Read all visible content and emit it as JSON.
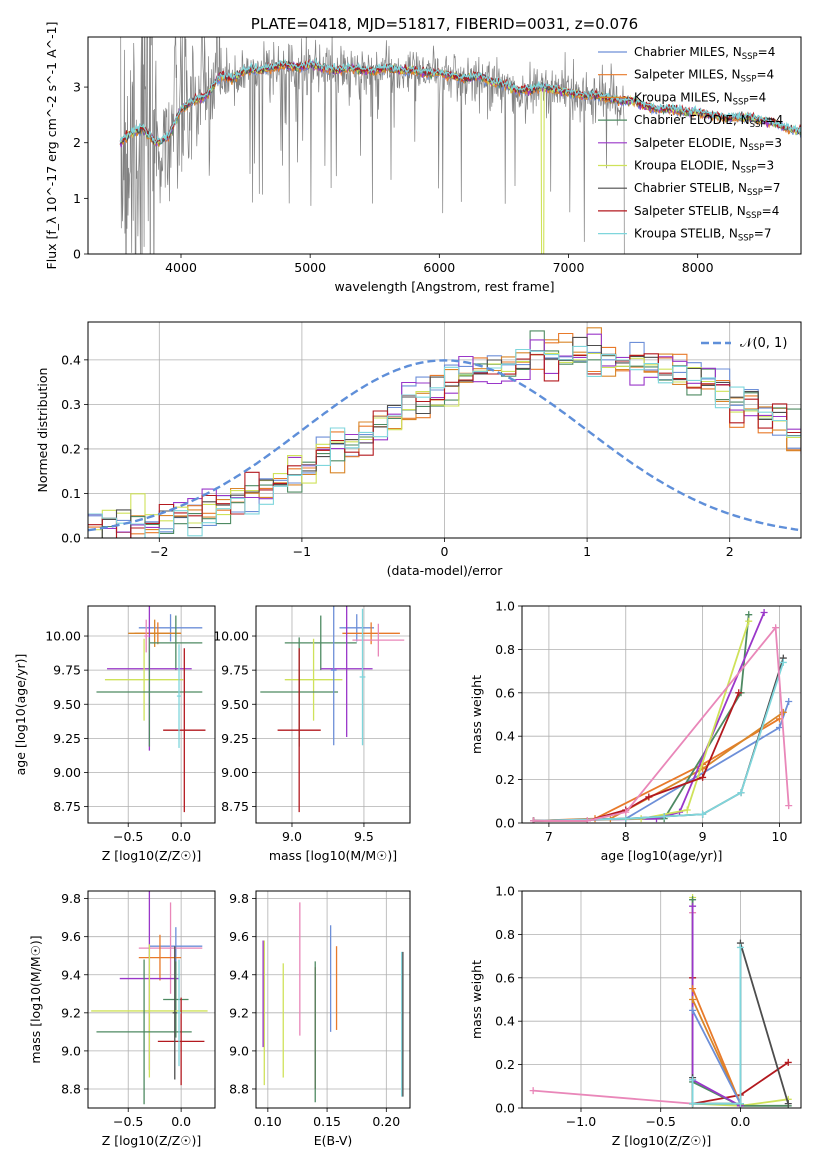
{
  "colors": {
    "chabrier_miles": "#6d8fd8",
    "salpeter_miles": "#e87a2a",
    "kroupa_miles": "#d9862a",
    "chabrier_elodie": "#4e8a62",
    "salpeter_elodie": "#9a37c9",
    "kroupa_elodie": "#cfe25a",
    "chabrier_stelib": "#4d4d4d",
    "salpeter_stelib": "#b3191f",
    "kroupa_stelib": "#7fd6dc",
    "pink": "#e987b9",
    "data_grey": "#808080",
    "normal": "#5f8fd9"
  },
  "chart_data": [
    {
      "id": "spectrum",
      "type": "line",
      "title": "PLATE=0418, MJD=51817, FIBERID=0031, z=0.076",
      "xlabel": "wavelength [Angstrom, rest frame]",
      "ylabel": "Flux [f_λ 10^-17 erg cm^-2 s^-1 A^-1]",
      "xlim": [
        3280,
        8800
      ],
      "ylim": [
        0,
        3.9
      ],
      "xticks": [
        "4000",
        "5000",
        "6000",
        "7000",
        "8000"
      ],
      "yticks": [
        "0",
        "1",
        "2",
        "3"
      ],
      "grid": false,
      "legend_position": "right",
      "legend": [
        {
          "label": "Chabrier MILES, N",
          "sub": "SSP",
          "suffix": "=4",
          "color_key": "chabrier_miles"
        },
        {
          "label": "Salpeter MILES, N",
          "sub": "SSP",
          "suffix": "=4",
          "color_key": "salpeter_miles"
        },
        {
          "label": "Kroupa MILES, N",
          "sub": "SSP",
          "suffix": "=4",
          "color_key": "kroupa_miles"
        },
        {
          "label": "Chabrier ELODIE, N",
          "sub": "SSP",
          "suffix": "=4",
          "color_key": "chabrier_elodie"
        },
        {
          "label": "Salpeter ELODIE, N",
          "sub": "SSP",
          "suffix": "=3",
          "color_key": "salpeter_elodie"
        },
        {
          "label": "Kroupa ELODIE, N",
          "sub": "SSP",
          "suffix": "=3",
          "color_key": "kroupa_elodie"
        },
        {
          "label": "Chabrier STELIB, N",
          "sub": "SSP",
          "suffix": "=7",
          "color_key": "chabrier_stelib"
        },
        {
          "label": "Salpeter STELIB, N",
          "sub": "SSP",
          "suffix": "=4",
          "color_key": "salpeter_stelib"
        },
        {
          "label": "Kroupa STELIB, N",
          "sub": "SSP",
          "suffix": "=7",
          "color_key": "kroupa_stelib"
        }
      ],
      "model_envelope": {
        "x": [
          3530,
          3600,
          3700,
          3800,
          3900,
          4000,
          4100,
          4200,
          4300,
          4400,
          4500,
          4600,
          4700,
          4800,
          4900,
          5000,
          5100,
          5200,
          5300,
          5400,
          5500,
          5600,
          5700,
          5800,
          5900,
          6000,
          6100,
          6200,
          6300,
          6400,
          6500,
          6600,
          6700,
          6800,
          6900,
          7000,
          7100,
          7200,
          7300,
          7400,
          7500,
          7600,
          7700,
          7800,
          7900,
          8000,
          8100,
          8200,
          8300,
          8400,
          8500,
          8600,
          8700,
          8800
        ],
        "y": [
          2.0,
          2.15,
          2.25,
          2.0,
          2.1,
          2.6,
          2.75,
          2.85,
          3.2,
          3.15,
          3.3,
          3.3,
          3.35,
          3.4,
          3.35,
          3.4,
          3.35,
          3.3,
          3.35,
          3.3,
          3.3,
          3.35,
          3.3,
          3.3,
          3.25,
          3.25,
          3.2,
          3.15,
          3.2,
          3.1,
          3.05,
          2.95,
          2.95,
          3.0,
          2.95,
          2.9,
          2.85,
          2.85,
          2.8,
          2.75,
          2.75,
          2.65,
          2.6,
          2.6,
          2.55,
          2.55,
          2.5,
          2.45,
          2.45,
          2.45,
          2.4,
          2.35,
          2.25,
          2.2
        ]
      },
      "data_notes": "grey observed spectrum, noisy below ~4300 A, valid flux ends near 7430 A"
    },
    {
      "id": "residuals",
      "type": "line",
      "xlabel": "(data-model)/error",
      "ylabel": "Normed distribution",
      "xlim": [
        -2.5,
        2.5
      ],
      "ylim": [
        0,
        0.485
      ],
      "xticks": [
        "−2",
        "−1",
        "0",
        "1",
        "2"
      ],
      "yticks": [
        "0.0",
        "0.1",
        "0.2",
        "0.3",
        "0.4"
      ],
      "grid": true,
      "legend_position": "top-right",
      "legend_label": "𝒩(0, 1)",
      "bin_width": 0.1,
      "bins_start": -2.5,
      "histogram": [
        0.022,
        0.024,
        0.028,
        0.032,
        0.036,
        0.045,
        0.052,
        0.058,
        0.064,
        0.072,
        0.082,
        0.095,
        0.11,
        0.125,
        0.145,
        0.165,
        0.185,
        0.2,
        0.215,
        0.235,
        0.26,
        0.28,
        0.3,
        0.315,
        0.33,
        0.345,
        0.36,
        0.375,
        0.385,
        0.395,
        0.4,
        0.405,
        0.41,
        0.41,
        0.41,
        0.405,
        0.405,
        0.4,
        0.395,
        0.39,
        0.385,
        0.375,
        0.36,
        0.345,
        0.33,
        0.31,
        0.29,
        0.275,
        0.255,
        0.235,
        0.215,
        0.19,
        0.17,
        0.15,
        0.13,
        0.11,
        0.095,
        0.082,
        0.07,
        0.06,
        0.052,
        0.046,
        0.04,
        0.035,
        0.03,
        0.026,
        0.023,
        0.021,
        0.02,
        0.02
      ],
      "normal_curve": {
        "mean": 0,
        "sigma": 1
      }
    },
    {
      "id": "age-vs-Z",
      "type": "scatter",
      "xlabel": "Z [log10(Z/Z☉)]",
      "ylabel": "age  [log10(age/yr)]",
      "xlim": [
        -0.88,
        0.32
      ],
      "ylim": [
        8.63,
        10.22
      ],
      "xticks": [
        "−0.5",
        "0.0"
      ],
      "yticks": [
        "8.75",
        "9.00",
        "9.25",
        "9.50",
        "9.75",
        "10.00"
      ],
      "grid": true,
      "points": [
        {
          "color_key": "chabrier_miles",
          "x": -0.1,
          "xerr": 0.3,
          "y": 10.06,
          "yerr": 0.1
        },
        {
          "color_key": "salpeter_miles",
          "x": -0.22,
          "xerr": 0.22,
          "y": 10.02,
          "yerr": 0.08
        },
        {
          "color_key": "kroupa_miles",
          "x": -0.25,
          "xerr": 0.25,
          "y": 10.02,
          "yerr": 0.1
        },
        {
          "color_key": "chabrier_elodie",
          "x": -0.05,
          "xerr": 0.25,
          "y": 9.95,
          "yerr": 0.2
        },
        {
          "color_key": "salpeter_elodie",
          "x": -0.3,
          "xerr": 0.4,
          "y": 9.76,
          "yerr": 0.6
        },
        {
          "color_key": "kroupa_elodie",
          "x": -0.35,
          "xerr": 0.37,
          "y": 9.68,
          "yerr": 0.3
        },
        {
          "color_key": "chabrier_elodie",
          "x": -0.3,
          "xerr": 0.5,
          "y": 9.59,
          "yerr": 0.4
        },
        {
          "color_key": "salpeter_stelib",
          "x": 0.03,
          "xerr": 0.2,
          "y": 9.31,
          "yerr": 0.6
        },
        {
          "color_key": "pink",
          "x": -0.33,
          "xerr": 0.02,
          "y": 10.0,
          "yerr": 0.12
        },
        {
          "color_key": "kroupa_stelib",
          "x": -0.02,
          "xerr": 0.02,
          "y": 9.56,
          "yerr": 0.38
        }
      ]
    },
    {
      "id": "age-vs-mass",
      "type": "scatter",
      "xlabel": "mass [log10(M/M☉)]",
      "ylabel": "",
      "xlim": [
        8.75,
        9.82
      ],
      "ylim": [
        8.63,
        10.22
      ],
      "xticks": [
        "9.0",
        "9.5"
      ],
      "yticks": [
        "8.75",
        "9.00",
        "9.25",
        "9.50",
        "9.75",
        "10.00"
      ],
      "grid": true,
      "points": [
        {
          "color_key": "chabrier_miles",
          "x": 9.45,
          "xerr": 0.12,
          "y": 10.06,
          "yerr": 0.1
        },
        {
          "color_key": "salpeter_miles",
          "x": 9.55,
          "xerr": 0.2,
          "y": 10.02,
          "yerr": 0.08
        },
        {
          "color_key": "pink",
          "x": 9.6,
          "xerr": 0.18,
          "y": 9.97,
          "yerr": 0.12
        },
        {
          "color_key": "chabrier_elodie",
          "x": 9.2,
          "xerr": 0.25,
          "y": 9.95,
          "yerr": 0.2
        },
        {
          "color_key": "salpeter_elodie",
          "x": 9.38,
          "xerr": 0.18,
          "y": 9.76,
          "yerr": 0.5
        },
        {
          "color_key": "kroupa_elodie",
          "x": 9.15,
          "xerr": 0.2,
          "y": 9.68,
          "yerr": 0.3
        },
        {
          "color_key": "chabrier_elodie",
          "x": 9.05,
          "xerr": 0.27,
          "y": 9.59,
          "yerr": 0.4
        },
        {
          "color_key": "salpeter_stelib",
          "x": 9.05,
          "xerr": 0.15,
          "y": 9.31,
          "yerr": 0.6
        },
        {
          "color_key": "chabrier_miles",
          "x": 9.29,
          "xerr": 0.02,
          "y": 9.75,
          "yerr": 0.55
        },
        {
          "color_key": "kroupa_stelib",
          "x": 9.49,
          "xerr": 0.02,
          "y": 9.7,
          "yerr": 0.5
        }
      ]
    },
    {
      "id": "weight-vs-age",
      "type": "line",
      "xlabel": "age  [log10(age/yr)]",
      "ylabel": "mass weight",
      "xlim": [
        6.65,
        10.28
      ],
      "ylim": [
        0,
        1
      ],
      "xticks": [
        "7",
        "8",
        "9",
        "10"
      ],
      "yticks": [
        "0.0",
        "0.2",
        "0.4",
        "0.6",
        "0.8",
        "1.0"
      ],
      "grid": true,
      "series": [
        {
          "color_key": "chabrier_miles",
          "x": [
            6.8,
            8.0,
            10.0,
            10.12
          ],
          "y": [
            0.01,
            0.02,
            0.44,
            0.56
          ]
        },
        {
          "color_key": "salpeter_miles",
          "x": [
            6.8,
            7.6,
            9.0,
            10.0
          ],
          "y": [
            0.01,
            0.02,
            0.27,
            0.48
          ]
        },
        {
          "color_key": "kroupa_miles",
          "x": [
            6.8,
            7.8,
            9.0,
            10.05
          ],
          "y": [
            0.01,
            0.02,
            0.25,
            0.51
          ]
        },
        {
          "color_key": "chabrier_elodie",
          "x": [
            6.8,
            8.0,
            8.5,
            9.5,
            9.6
          ],
          "y": [
            0.01,
            0.02,
            0.02,
            0.6,
            0.96
          ]
        },
        {
          "color_key": "salpeter_elodie",
          "x": [
            6.8,
            8.4,
            8.7,
            9.8
          ],
          "y": [
            0.01,
            0.02,
            0.05,
            0.97
          ]
        },
        {
          "color_key": "kroupa_elodie",
          "x": [
            6.8,
            8.2,
            8.8,
            9.6
          ],
          "y": [
            0.01,
            0.02,
            0.06,
            0.93
          ]
        },
        {
          "color_key": "chabrier_stelib",
          "x": [
            6.8,
            8.0,
            8.5,
            9.0,
            9.5,
            10.05
          ],
          "y": [
            0.01,
            0.02,
            0.03,
            0.04,
            0.14,
            0.76
          ]
        },
        {
          "color_key": "salpeter_stelib",
          "x": [
            6.8,
            7.5,
            8.0,
            8.3,
            9.0,
            9.47
          ],
          "y": [
            0.01,
            0.01,
            0.06,
            0.12,
            0.21,
            0.6
          ]
        },
        {
          "color_key": "kroupa_stelib",
          "x": [
            6.8,
            8.0,
            8.5,
            9.0,
            9.5,
            10.05
          ],
          "y": [
            0.01,
            0.02,
            0.03,
            0.04,
            0.14,
            0.74
          ]
        },
        {
          "color_key": "pink",
          "x": [
            6.8,
            7.5,
            8.0,
            9.95,
            10.12
          ],
          "y": [
            0.01,
            0.01,
            0.05,
            0.9,
            0.08
          ]
        }
      ]
    },
    {
      "id": "mass-vs-Z",
      "type": "scatter",
      "xlabel": "Z [log10(Z/Z☉)]",
      "ylabel": "mass [log10(M/M☉)]",
      "xlim": [
        -0.88,
        0.32
      ],
      "ylim": [
        8.7,
        9.84
      ],
      "xticks": [
        "−0.5",
        "0.0"
      ],
      "yticks": [
        "8.8",
        "9.0",
        "9.2",
        "9.4",
        "9.6",
        "9.8"
      ],
      "grid": true,
      "points": [
        {
          "color_key": "chabrier_miles",
          "x": -0.05,
          "xerr": 0.25,
          "y": 9.55,
          "yerr": 0.1
        },
        {
          "color_key": "pink",
          "x": -0.1,
          "xerr": 0.3,
          "y": 9.54,
          "yerr": 0.24
        },
        {
          "color_key": "salpeter_miles",
          "x": -0.2,
          "xerr": 0.2,
          "y": 9.49,
          "yerr": 0.12
        },
        {
          "color_key": "salpeter_elodie",
          "x": -0.3,
          "xerr": 0.28,
          "y": 9.38,
          "yerr": 0.48
        },
        {
          "color_key": "chabrier_elodie",
          "x": -0.05,
          "xerr": 0.12,
          "y": 9.27,
          "yerr": 0.2
        },
        {
          "color_key": "kroupa_elodie",
          "x": -0.3,
          "xerr": 0.55,
          "y": 9.21,
          "yerr": 0.35
        },
        {
          "color_key": "chabrier_elodie",
          "x": -0.35,
          "xerr": 0.45,
          "y": 9.1,
          "yerr": 0.38
        },
        {
          "color_key": "salpeter_stelib",
          "x": 0.0,
          "xerr": 0.22,
          "y": 9.05,
          "yerr": 0.23
        },
        {
          "color_key": "kroupa_stelib",
          "x": -0.02,
          "xerr": 0.02,
          "y": 9.2,
          "yerr": 0.28
        },
        {
          "color_key": "chabrier_stelib",
          "x": -0.06,
          "xerr": 0.02,
          "y": 9.2,
          "yerr": 0.35
        }
      ]
    },
    {
      "id": "mass-vs-ebv",
      "type": "scatter",
      "xlabel": "E(B-V)",
      "ylabel": "",
      "xlim": [
        0.09,
        0.22
      ],
      "ylim": [
        8.7,
        9.84
      ],
      "xticks": [
        "0.10",
        "0.15",
        "0.20"
      ],
      "yticks": [
        "8.8",
        "9.0",
        "9.2",
        "9.4",
        "9.6",
        "9.8"
      ],
      "grid": true,
      "points": [
        {
          "color_key": "kroupa_elodie",
          "x": 0.097,
          "xerr": 0,
          "y": 9.2,
          "yerr": 0.38
        },
        {
          "color_key": "salpeter_elodie",
          "x": 0.096,
          "xerr": 0,
          "y": 9.3,
          "yerr": 0.28
        },
        {
          "color_key": "kroupa_elodie",
          "x": 0.113,
          "xerr": 0,
          "y": 9.16,
          "yerr": 0.3
        },
        {
          "color_key": "pink",
          "x": 0.127,
          "xerr": 0,
          "y": 9.43,
          "yerr": 0.35
        },
        {
          "color_key": "salpeter_stelib",
          "x": 0.14,
          "xerr": 0,
          "y": 9.12,
          "yerr": 0.32
        },
        {
          "color_key": "chabrier_elodie",
          "x": 0.14,
          "xerr": 0,
          "y": 9.1,
          "yerr": 0.37
        },
        {
          "color_key": "chabrier_miles",
          "x": 0.153,
          "xerr": 0,
          "y": 9.38,
          "yerr": 0.28
        },
        {
          "color_key": "salpeter_miles",
          "x": 0.158,
          "xerr": 0,
          "y": 9.33,
          "yerr": 0.22
        },
        {
          "color_key": "kroupa_stelib",
          "x": 0.213,
          "xerr": 0,
          "y": 9.14,
          "yerr": 0.38
        },
        {
          "color_key": "chabrier_stelib",
          "x": 0.214,
          "xerr": 0,
          "y": 9.14,
          "yerr": 0.38
        }
      ]
    },
    {
      "id": "weight-vs-Z",
      "type": "line",
      "xlabel": "Z [log10(Z/Z☉)]",
      "ylabel": "mass weight",
      "xlim": [
        -1.37,
        0.38
      ],
      "ylim": [
        0,
        1
      ],
      "xticks": [
        "−1.0",
        "−0.5",
        "0.0"
      ],
      "yticks": [
        "0.0",
        "0.2",
        "0.4",
        "0.6",
        "0.8",
        "1.0"
      ],
      "grid": true,
      "series": [
        {
          "color_key": "pink",
          "x": [
            -1.3,
            -0.3,
            -0.3
          ],
          "y": [
            0.08,
            0.02,
            0.9
          ]
        },
        {
          "color_key": "salpeter_stelib",
          "x": [
            -0.3,
            -0.3,
            0.0,
            0.3
          ],
          "y": [
            0.6,
            0.02,
            0.06,
            0.21
          ]
        },
        {
          "color_key": "kroupa_elodie",
          "x": [
            -0.3,
            -0.3,
            0.0,
            0.3
          ],
          "y": [
            0.97,
            0.02,
            0.01,
            0.04
          ]
        },
        {
          "color_key": "chabrier_elodie",
          "x": [
            -0.3,
            -0.3,
            0.0,
            0.3
          ],
          "y": [
            0.96,
            0.12,
            0.01,
            0.01
          ]
        },
        {
          "color_key": "salpeter_elodie",
          "x": [
            -0.3,
            -0.3,
            0.0
          ],
          "y": [
            0.93,
            0.13,
            0.01
          ]
        },
        {
          "color_key": "salpeter_miles",
          "x": [
            -0.3,
            0.0
          ],
          "y": [
            0.55,
            0.02
          ]
        },
        {
          "color_key": "kroupa_miles",
          "x": [
            -0.3,
            0.0
          ],
          "y": [
            0.5,
            0.02
          ]
        },
        {
          "color_key": "chabrier_miles",
          "x": [
            -0.3,
            0.0
          ],
          "y": [
            0.45,
            0.02
          ]
        },
        {
          "color_key": "chabrier_stelib",
          "x": [
            -0.3,
            -0.3,
            0.0,
            0.0,
            0.3
          ],
          "y": [
            0.14,
            0.02,
            0.02,
            0.76,
            0.02
          ]
        },
        {
          "color_key": "kroupa_stelib",
          "x": [
            -0.3,
            -0.3,
            0.0,
            0.0
          ],
          "y": [
            0.13,
            0.02,
            0.02,
            0.74
          ]
        }
      ]
    }
  ]
}
